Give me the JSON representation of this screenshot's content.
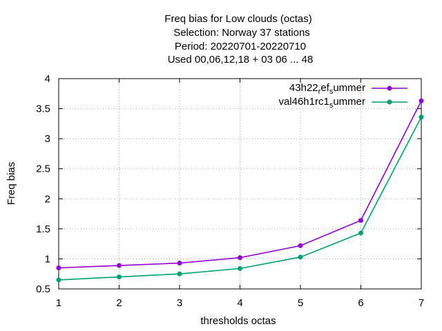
{
  "chart_data": {
    "type": "line",
    "title_lines": [
      "Freq bias  for Low clouds (octas)",
      "Selection: Norway     37 stations",
      "Period: 20220701-20220710",
      "Used  00,06,12,18  + 03 06 ... 48"
    ],
    "xlabel": "thresholds octas",
    "ylabel": "Freq bias",
    "x": [
      1,
      2,
      3,
      4,
      5,
      6,
      7
    ],
    "xlim": [
      1,
      7
    ],
    "ylim": [
      0.5,
      4
    ],
    "xticks": [
      "1",
      "2",
      "3",
      "4",
      "5",
      "6",
      "7"
    ],
    "yticks": [
      "0.5",
      "1",
      "1.5",
      "2",
      "2.5",
      "3",
      "3.5",
      "4"
    ],
    "grid": true,
    "legend_position": "top-right",
    "series": [
      {
        "name_main": "43h22",
        "name_sub1": "r",
        "name_mid": "ef",
        "name_sub2": "s",
        "name_end": "ummer",
        "color": "#9400d3",
        "values": [
          0.85,
          0.89,
          0.93,
          1.02,
          1.22,
          1.64,
          3.63
        ]
      },
      {
        "name_main": "val46h1rc1",
        "name_sub1": "",
        "name_mid": "",
        "name_sub2": "s",
        "name_end": "ummer",
        "color": "#009e73",
        "values": [
          0.65,
          0.7,
          0.75,
          0.84,
          1.03,
          1.43,
          3.36
        ]
      }
    ]
  }
}
